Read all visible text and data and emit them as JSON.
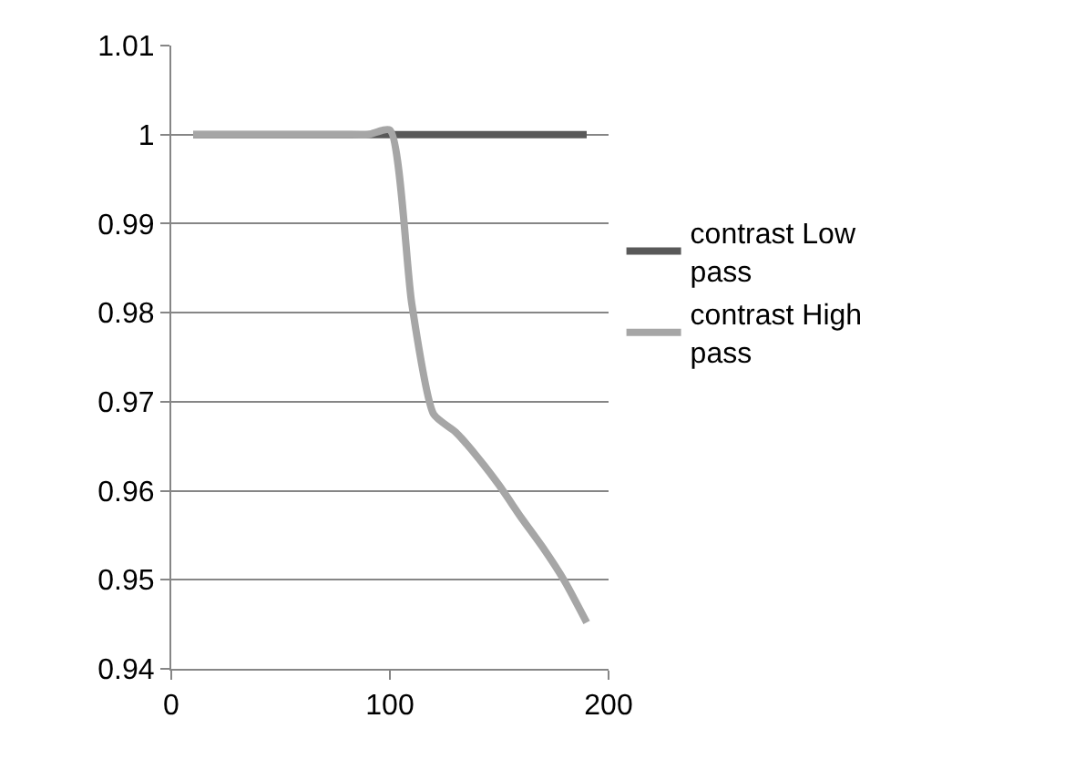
{
  "chart_data": {
    "type": "line",
    "x": [
      10,
      20,
      30,
      40,
      50,
      60,
      70,
      80,
      90,
      100,
      110,
      120,
      130,
      140,
      150,
      160,
      170,
      180,
      190
    ],
    "series": [
      {
        "name": "contrast Low pass",
        "color": "#595959",
        "values": [
          1,
          1,
          1,
          1,
          1,
          1,
          1,
          1,
          1,
          1,
          1,
          1,
          1,
          1,
          1,
          1,
          1,
          1,
          1
        ]
      },
      {
        "name": "contrast High pass",
        "color": "#a6a6a6",
        "values": [
          1,
          1,
          1,
          1,
          1,
          1,
          1,
          1,
          1,
          1.0005,
          0.981,
          0.9686,
          0.9666,
          0.9638,
          0.9606,
          0.957,
          0.9536,
          0.9498,
          0.9452
        ]
      }
    ],
    "xlim": [
      0,
      200
    ],
    "xticks": [
      0,
      100,
      200
    ],
    "ylim": [
      0.94,
      1.01
    ],
    "yticks": [
      0.94,
      0.95,
      0.96,
      0.97,
      0.98,
      0.99,
      1,
      1.01
    ],
    "grid": "y",
    "legend": "right",
    "marker": "none",
    "line_style": "solid"
  }
}
